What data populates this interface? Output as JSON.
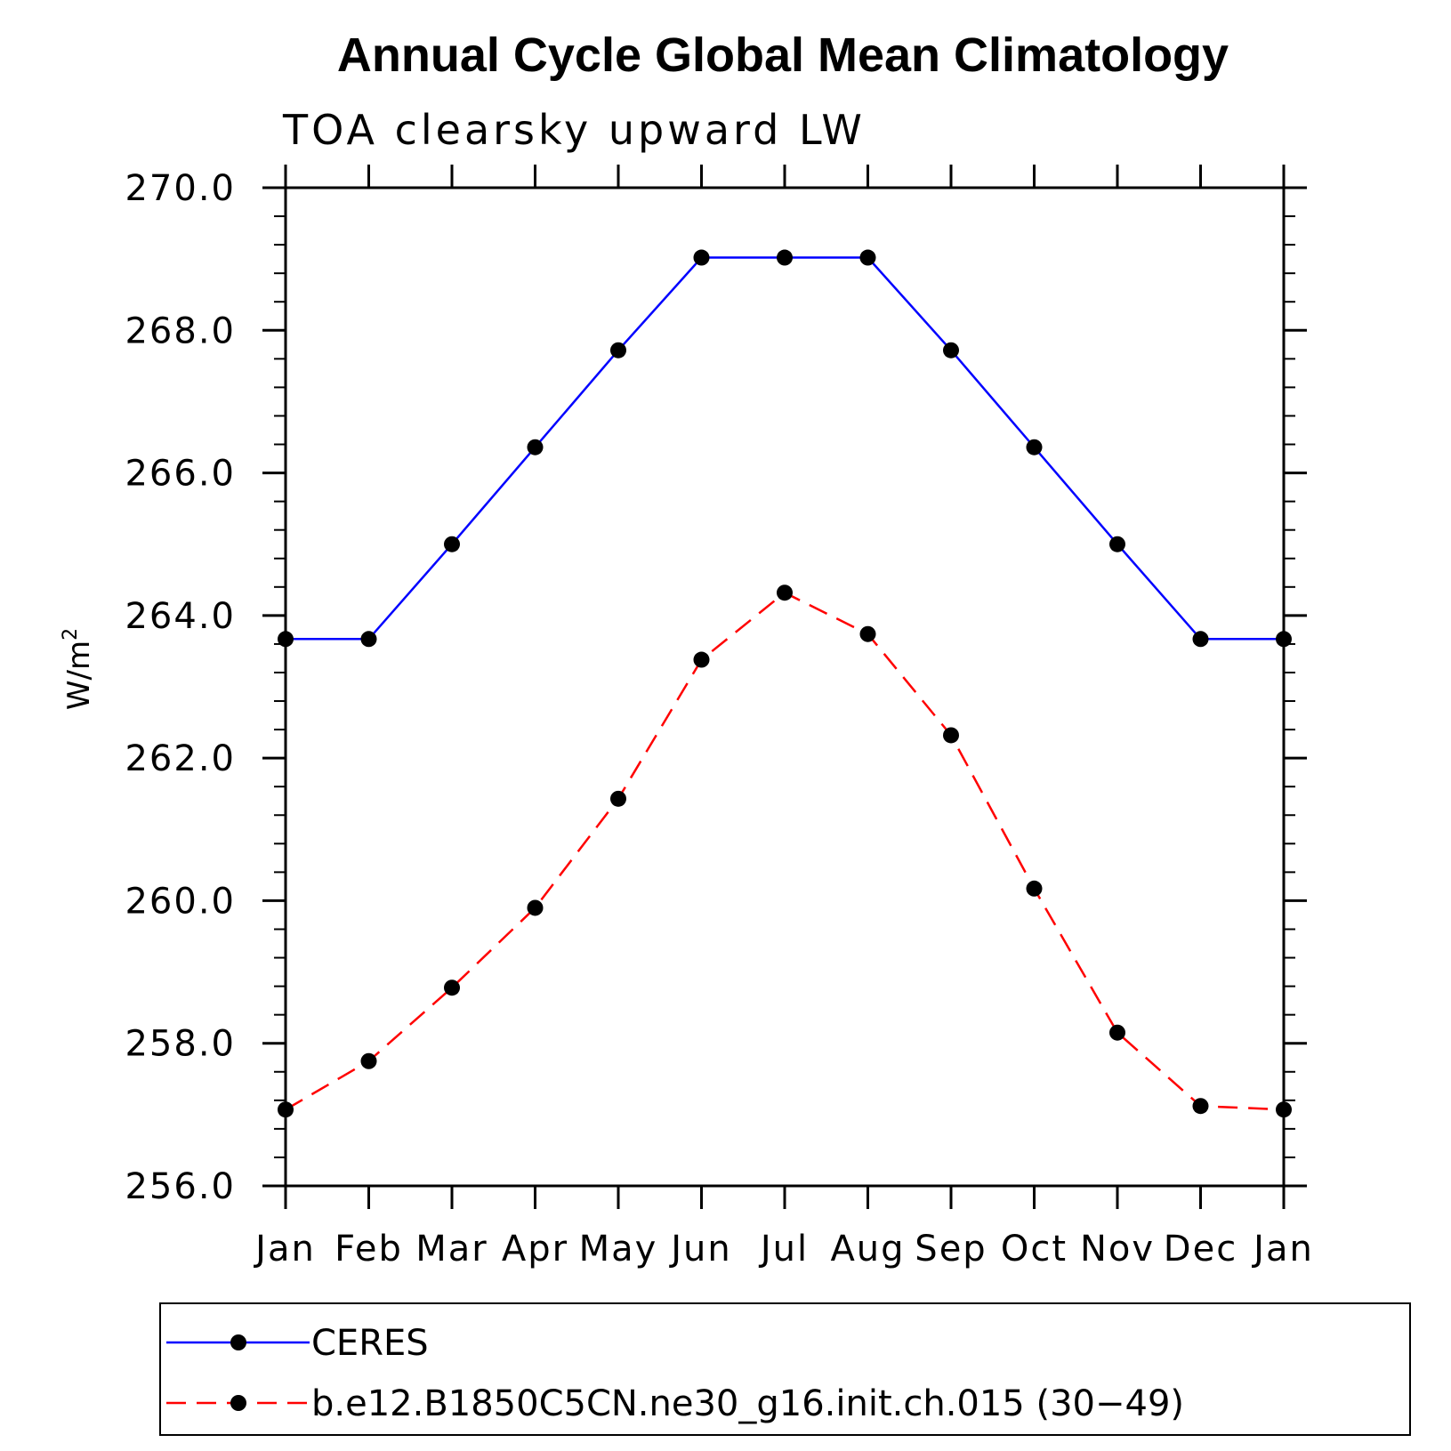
{
  "chart_data": {
    "type": "line",
    "title": "Annual Cycle Global Mean Climatology",
    "subtitle": "TOA clearsky upward LW",
    "ylabel": "W/m",
    "ylabel_sup": "2",
    "xlabel": "",
    "categories": [
      "Jan",
      "Feb",
      "Mar",
      "Apr",
      "May",
      "Jun",
      "Jul",
      "Aug",
      "Sep",
      "Oct",
      "Nov",
      "Dec",
      "Jan"
    ],
    "ylim": [
      256.0,
      270.0
    ],
    "yticks": [
      "256.0",
      "258.0",
      "260.0",
      "262.0",
      "264.0",
      "266.0",
      "268.0",
      "270.0"
    ],
    "grid": false,
    "legend_position": "bottom",
    "series": [
      {
        "name": "CERES",
        "color": "#0000ff",
        "style": "solid",
        "marker": "filled-circle",
        "values": [
          263.67,
          263.67,
          265.0,
          266.36,
          267.72,
          269.02,
          269.02,
          269.02,
          267.72,
          266.36,
          265.0,
          263.67,
          263.67
        ]
      },
      {
        "name": "b.e12.B1850C5CN.ne30_g16.init.ch.015 (30−49)",
        "color": "#ff0000",
        "style": "dashed",
        "marker": "filled-circle",
        "values": [
          257.07,
          257.75,
          258.78,
          259.9,
          261.43,
          263.38,
          264.32,
          263.74,
          262.32,
          260.17,
          258.15,
          257.12,
          257.07
        ]
      }
    ]
  }
}
